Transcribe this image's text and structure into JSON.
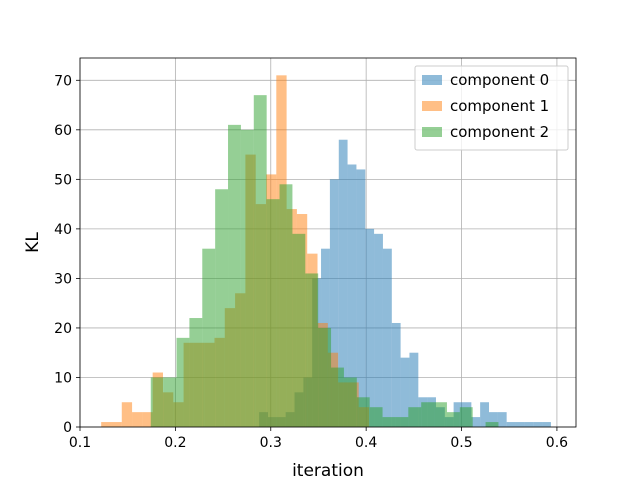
{
  "chart_data": {
    "type": "bar",
    "subtype": "histogram",
    "xlabel": "iteration",
    "ylabel": "KL",
    "xlim": [
      0.1,
      0.62
    ],
    "ylim": [
      0,
      74.5
    ],
    "xticks": [
      "0.1",
      "0.2",
      "0.3",
      "0.4",
      "0.5",
      "0.6"
    ],
    "yticks": [
      "0",
      "10",
      "20",
      "30",
      "40",
      "50",
      "60",
      "70"
    ],
    "grid": true,
    "legend_position": "top-right",
    "series": [
      {
        "name": "component 0",
        "color": "#1f77b4",
        "opacity": 0.5,
        "bins": [
          [
            0.2878,
            0.2971,
            3
          ],
          [
            0.2971,
            0.3064,
            2
          ],
          [
            0.3064,
            0.3156,
            2
          ],
          [
            0.3156,
            0.3249,
            3
          ],
          [
            0.3249,
            0.3342,
            7
          ],
          [
            0.3342,
            0.3434,
            10
          ],
          [
            0.3434,
            0.3527,
            30
          ],
          [
            0.3527,
            0.362,
            36
          ],
          [
            0.362,
            0.3713,
            50
          ],
          [
            0.3713,
            0.3805,
            58
          ],
          [
            0.3805,
            0.3898,
            53
          ],
          [
            0.3898,
            0.3991,
            52
          ],
          [
            0.3991,
            0.4083,
            40
          ],
          [
            0.4083,
            0.4176,
            39
          ],
          [
            0.4176,
            0.4269,
            36
          ],
          [
            0.4269,
            0.4361,
            21
          ],
          [
            0.4361,
            0.4454,
            14
          ],
          [
            0.4454,
            0.4547,
            15
          ],
          [
            0.4547,
            0.4639,
            6
          ],
          [
            0.4639,
            0.4732,
            6
          ],
          [
            0.4732,
            0.4825,
            4
          ],
          [
            0.4825,
            0.4917,
            2
          ],
          [
            0.4917,
            0.501,
            5
          ],
          [
            0.501,
            0.5103,
            5
          ],
          [
            0.5103,
            0.5195,
            2
          ],
          [
            0.5195,
            0.5288,
            5
          ],
          [
            0.5288,
            0.5381,
            3
          ],
          [
            0.5381,
            0.5473,
            3
          ],
          [
            0.5473,
            0.5566,
            1
          ],
          [
            0.5566,
            0.5659,
            1
          ],
          [
            0.5659,
            0.5751,
            1
          ],
          [
            0.5751,
            0.5844,
            1
          ],
          [
            0.5844,
            0.5937,
            1
          ]
        ]
      },
      {
        "name": "component 1",
        "color": "#ff7f0e",
        "opacity": 0.5,
        "bins": [
          [
            0.1222,
            0.133,
            1
          ],
          [
            0.133,
            0.1438,
            1
          ],
          [
            0.1438,
            0.1546,
            5
          ],
          [
            0.1546,
            0.1654,
            3
          ],
          [
            0.1654,
            0.1762,
            3
          ],
          [
            0.1762,
            0.187,
            11
          ],
          [
            0.187,
            0.1978,
            7
          ],
          [
            0.1978,
            0.2086,
            5
          ],
          [
            0.2086,
            0.2194,
            17
          ],
          [
            0.2194,
            0.2302,
            17
          ],
          [
            0.2302,
            0.241,
            17
          ],
          [
            0.241,
            0.2518,
            18
          ],
          [
            0.2518,
            0.2626,
            24
          ],
          [
            0.2626,
            0.2734,
            27
          ],
          [
            0.2734,
            0.2842,
            55
          ],
          [
            0.2842,
            0.295,
            45
          ],
          [
            0.295,
            0.3058,
            51
          ],
          [
            0.3058,
            0.3166,
            71
          ],
          [
            0.3166,
            0.3274,
            44
          ],
          [
            0.3274,
            0.3382,
            43
          ],
          [
            0.3382,
            0.349,
            35
          ],
          [
            0.349,
            0.3598,
            21
          ],
          [
            0.3598,
            0.3706,
            15
          ],
          [
            0.3706,
            0.3814,
            9
          ],
          [
            0.3814,
            0.3922,
            9
          ],
          [
            0.3922,
            0.403,
            4
          ]
        ]
      },
      {
        "name": "component 2",
        "color": "#2ca02c",
        "opacity": 0.5,
        "bins": [
          [
            0.1742,
            0.1877,
            10
          ],
          [
            0.1877,
            0.2012,
            10
          ],
          [
            0.2012,
            0.2147,
            18
          ],
          [
            0.2147,
            0.2282,
            22
          ],
          [
            0.2282,
            0.2417,
            36
          ],
          [
            0.2417,
            0.2552,
            48
          ],
          [
            0.2552,
            0.2687,
            61
          ],
          [
            0.2687,
            0.2822,
            60
          ],
          [
            0.2822,
            0.2957,
            67
          ],
          [
            0.2957,
            0.3092,
            46
          ],
          [
            0.3092,
            0.3227,
            49
          ],
          [
            0.3227,
            0.3362,
            39
          ],
          [
            0.3362,
            0.3497,
            31
          ],
          [
            0.3497,
            0.3632,
            20
          ],
          [
            0.3632,
            0.3767,
            12
          ],
          [
            0.3767,
            0.3902,
            10
          ],
          [
            0.3902,
            0.4037,
            6
          ],
          [
            0.4037,
            0.4172,
            4
          ],
          [
            0.4172,
            0.4307,
            2
          ],
          [
            0.4307,
            0.4442,
            2
          ],
          [
            0.4442,
            0.4577,
            4
          ],
          [
            0.4577,
            0.4712,
            5
          ],
          [
            0.4712,
            0.4847,
            5
          ],
          [
            0.4847,
            0.4982,
            3
          ],
          [
            0.4982,
            0.5117,
            4
          ],
          [
            0.5117,
            0.5252,
            0
          ],
          [
            0.5252,
            0.5387,
            1
          ]
        ]
      }
    ]
  }
}
